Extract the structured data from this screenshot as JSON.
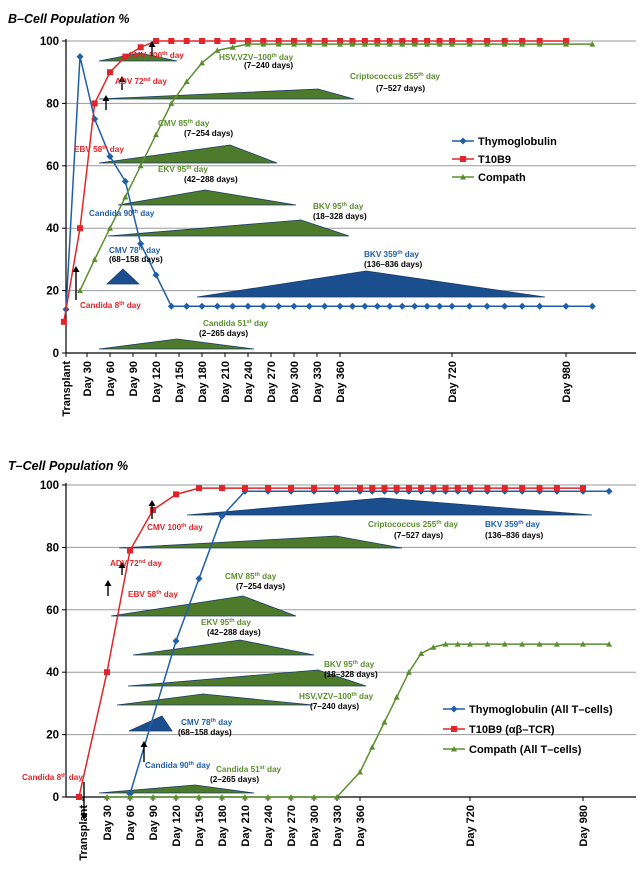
{
  "chart_data": [
    {
      "type": "line",
      "title": "B–Cell Population %",
      "ylim": [
        0,
        100
      ],
      "yticks": [
        0,
        20,
        40,
        60,
        80,
        100
      ],
      "grid": true,
      "legend_position": "right",
      "x_tick_labels": [
        "Transplant",
        "Day 30",
        "Day 60",
        "Day 90",
        "Day 120",
        "Day 150",
        "Day 180",
        "Day 210",
        "Day 240",
        "Day 270",
        "Day 300",
        "Day 330",
        "Day 360",
        "Day 720",
        "Day 980"
      ],
      "series": [
        {
          "name": "Thymoglobulin",
          "color": "#1F5FA8",
          "marker": "diamond",
          "x": [
            0,
            20,
            40,
            60,
            80,
            100,
            120,
            140,
            160,
            180,
            200,
            220,
            240,
            260,
            280,
            300,
            320,
            340,
            360,
            400,
            440,
            480,
            520,
            560,
            600,
            640,
            680,
            720,
            760,
            800,
            840,
            880,
            920,
            980,
            1040
          ],
          "y": [
            14,
            95,
            75,
            63,
            55,
            35,
            25,
            15,
            15,
            15,
            15,
            15,
            15,
            15,
            15,
            15,
            15,
            15,
            15,
            15,
            15,
            15,
            15,
            15,
            15,
            15,
            15,
            15,
            15,
            15,
            15,
            15,
            15,
            15,
            15
          ]
        },
        {
          "name": "T10B9",
          "color": "#E0262A",
          "marker": "square",
          "x": [
            -3,
            20,
            40,
            60,
            80,
            100,
            120,
            140,
            160,
            180,
            200,
            220,
            240,
            260,
            280,
            300,
            320,
            340,
            360,
            400,
            440,
            480,
            520,
            560,
            600,
            640,
            680,
            720,
            760,
            800,
            840,
            880,
            920,
            980
          ],
          "y": [
            10,
            40,
            80,
            90,
            95,
            98,
            100,
            100,
            100,
            100,
            100,
            100,
            100,
            100,
            100,
            100,
            100,
            100,
            100,
            100,
            100,
            100,
            100,
            100,
            100,
            100,
            100,
            100,
            100,
            100,
            100,
            100,
            100,
            100
          ]
        },
        {
          "name": "Compath",
          "color": "#5B8F2E",
          "marker": "triangle",
          "x": [
            20,
            40,
            60,
            80,
            100,
            120,
            140,
            160,
            180,
            200,
            220,
            240,
            260,
            280,
            300,
            320,
            340,
            360,
            400,
            440,
            480,
            520,
            560,
            600,
            640,
            680,
            720,
            760,
            800,
            840,
            880,
            920,
            980,
            1040
          ],
          "y": [
            20,
            30,
            40,
            50,
            60,
            70,
            80,
            87,
            93,
            97,
            98,
            99,
            99,
            99,
            99,
            99,
            99,
            99,
            99,
            99,
            99,
            99,
            99,
            99,
            99,
            99,
            99,
            99,
            99,
            99,
            99,
            99,
            99,
            99
          ]
        }
      ],
      "annotations": [
        {
          "text": "CMV 100th day",
          "color": "#E0262A"
        },
        {
          "text": "ADV 72nd day",
          "color": "#E0262A"
        },
        {
          "text": "EBV 58th day",
          "color": "#E0262A"
        },
        {
          "text": "Candida 8th day",
          "color": "#E0262A"
        },
        {
          "text": "HSV,VZV–100th day",
          "color": "#5B8F2E"
        },
        {
          "text": "(7–240 days)",
          "color": "#000000"
        },
        {
          "text": "Criptococcus 255th day",
          "color": "#5B8F2E"
        },
        {
          "text": "(7–527 days)",
          "color": "#000000"
        },
        {
          "text": "CMV 85th day",
          "color": "#5B8F2E"
        },
        {
          "text": "(7–254 days)",
          "color": "#000000"
        },
        {
          "text": "EKV 95th day",
          "color": "#5B8F2E"
        },
        {
          "text": "(42–288 days)",
          "color": "#000000"
        },
        {
          "text": "BKV 95th day",
          "color": "#5B8F2E"
        },
        {
          "text": "(18–328 days)",
          "color": "#000000"
        },
        {
          "text": "Candida 90th day",
          "color": "#1F5FA8"
        },
        {
          "text": "CMV 78th day",
          "color": "#1F5FA8"
        },
        {
          "text": "(68–158 days)",
          "color": "#000000"
        },
        {
          "text": "BKV 359th day",
          "color": "#1F5FA8"
        },
        {
          "text": "(136–836 days)",
          "color": "#000000"
        },
        {
          "text": "Candida 51st day",
          "color": "#5B8F2E"
        },
        {
          "text": "(2–265 days)",
          "color": "#000000"
        }
      ]
    },
    {
      "type": "line",
      "title": "T–Cell Population %",
      "ylim": [
        0,
        100
      ],
      "yticks": [
        0,
        20,
        40,
        60,
        80,
        100
      ],
      "grid": true,
      "legend_position": "right",
      "x_tick_labels": [
        "Transplant",
        "Day 30",
        "Day 60",
        "Day 90",
        "Day 120",
        "Day 150",
        "Day 180",
        "Day 210",
        "Day 240",
        "Day 270",
        "Day 300",
        "Day 330",
        "Day 360",
        "Day 720",
        "Day 980"
      ],
      "series": [
        {
          "name": "Thymoglobulin (All T–cells)",
          "color": "#1F5FA8",
          "marker": "diamond",
          "x": [
            60,
            120,
            150,
            180,
            210,
            240,
            270,
            300,
            330,
            360,
            400,
            440,
            480,
            520,
            560,
            600,
            640,
            680,
            720,
            760,
            800,
            840,
            880,
            920,
            980,
            1040
          ],
          "y": [
            1,
            50,
            70,
            90,
            98,
            98,
            98,
            98,
            98,
            98,
            98,
            98,
            98,
            98,
            98,
            98,
            98,
            98,
            98,
            98,
            98,
            98,
            98,
            98,
            98,
            98
          ]
        },
        {
          "name": "T10B9 (αβ–TCR)",
          "color": "#E0262A",
          "marker": "square",
          "x": [
            -5,
            30,
            60,
            90,
            120,
            150,
            180,
            210,
            240,
            270,
            300,
            330,
            360,
            400,
            440,
            480,
            520,
            560,
            600,
            640,
            680,
            720,
            760,
            800,
            840,
            880,
            920,
            980
          ],
          "y": [
            0,
            40,
            79,
            92,
            97,
            99,
            99,
            99,
            99,
            99,
            99,
            99,
            99,
            99,
            99,
            99,
            99,
            99,
            99,
            99,
            99,
            99,
            99,
            99,
            99,
            99,
            99,
            99
          ]
        },
        {
          "name": "Compath (All T–cells)",
          "color": "#5B8F2E",
          "marker": "triangle",
          "x": [
            30,
            60,
            90,
            120,
            150,
            180,
            210,
            240,
            270,
            300,
            330,
            360,
            400,
            440,
            480,
            520,
            560,
            600,
            640,
            680,
            720,
            760,
            800,
            840,
            880,
            920,
            980,
            1040
          ],
          "y": [
            0,
            0,
            0,
            0,
            0,
            0,
            0,
            0,
            0,
            0,
            0,
            8,
            16,
            24,
            32,
            40,
            46,
            48,
            49,
            49,
            49,
            49,
            49,
            49,
            49,
            49,
            49,
            49
          ]
        }
      ],
      "annotations": [
        {
          "text": "CMV 100th day",
          "color": "#E0262A"
        },
        {
          "text": "ADV 72nd day",
          "color": "#E0262A"
        },
        {
          "text": "EBV 58th day",
          "color": "#E0262A"
        },
        {
          "text": "Candida 8th day",
          "color": "#E0262A"
        },
        {
          "text": "Criptococcus 255th day",
          "color": "#5B8F2E"
        },
        {
          "text": "(7–527 days)",
          "color": "#000000"
        },
        {
          "text": "BKV 359th day",
          "color": "#1F5FA8"
        },
        {
          "text": "(136–836 days)",
          "color": "#000000"
        },
        {
          "text": "CMV 85th day",
          "color": "#5B8F2E"
        },
        {
          "text": "(7–254 days)",
          "color": "#000000"
        },
        {
          "text": "EKV 95th day",
          "color": "#5B8F2E"
        },
        {
          "text": "(42–288 days)",
          "color": "#000000"
        },
        {
          "text": "BKV 95th day",
          "color": "#5B8F2E"
        },
        {
          "text": "(18–328 days)",
          "color": "#000000"
        },
        {
          "text": "HSV,VZV–100th day",
          "color": "#5B8F2E"
        },
        {
          "text": "(7–240 days)",
          "color": "#000000"
        },
        {
          "text": "CMV 78th day",
          "color": "#1F5FA8"
        },
        {
          "text": "(68–158 days)",
          "color": "#000000"
        },
        {
          "text": "Candida 90th day",
          "color": "#1F5FA8"
        },
        {
          "text": "Candida 51st day",
          "color": "#5B8F2E"
        },
        {
          "text": "(2–265 days)",
          "color": "#000000"
        }
      ]
    }
  ]
}
